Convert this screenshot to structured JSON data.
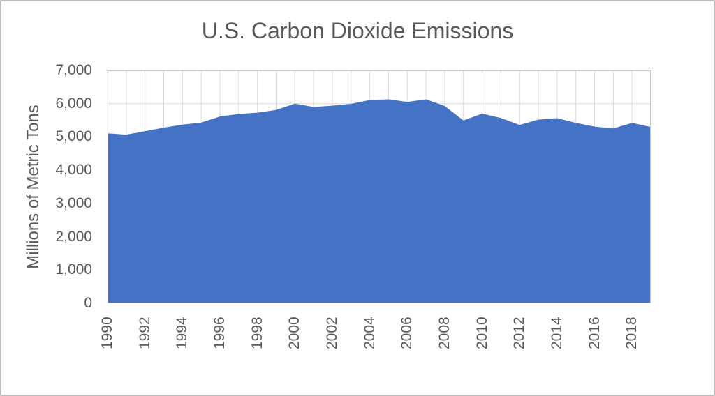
{
  "window": {
    "background": "#ffffff",
    "border_color": "#bdbdbd"
  },
  "chart_data": {
    "type": "area",
    "title": "U.S. Carbon Dioxide Emissions",
    "xlabel": "",
    "ylabel": "Millions of Metric Tons",
    "x": [
      1990,
      1991,
      1992,
      1993,
      1994,
      1995,
      1996,
      1997,
      1998,
      1999,
      2000,
      2001,
      2002,
      2003,
      2004,
      2005,
      2006,
      2007,
      2008,
      2009,
      2010,
      2011,
      2012,
      2013,
      2014,
      2015,
      2016,
      2017,
      2018,
      2019
    ],
    "values": [
      5110,
      5070,
      5170,
      5280,
      5370,
      5430,
      5615,
      5690,
      5730,
      5810,
      6000,
      5900,
      5940,
      5995,
      6110,
      6130,
      6050,
      6130,
      5930,
      5495,
      5700,
      5570,
      5360,
      5520,
      5565,
      5425,
      5310,
      5255,
      5425,
      5300
    ],
    "ylim": [
      0,
      7000
    ],
    "y_ticks": [
      0,
      1000,
      2000,
      3000,
      4000,
      5000,
      6000,
      7000
    ],
    "y_tick_labels": [
      "0",
      "1,000",
      "2,000",
      "3,000",
      "4,000",
      "5,000",
      "6,000",
      "7,000"
    ],
    "x_tick_labels": [
      "1990",
      "1992",
      "1994",
      "1996",
      "1998",
      "2000",
      "2002",
      "2004",
      "2006",
      "2008",
      "2010",
      "2012",
      "2014",
      "2016",
      "2018"
    ],
    "x_tick_step": 2,
    "grid": "both",
    "gridline_every_x": 1,
    "legend": "none",
    "colors": {
      "area_fill": "#4472c4",
      "gridline": "#d9d9d9",
      "plot_border": "#c6c6c6",
      "text": "#595959"
    }
  }
}
